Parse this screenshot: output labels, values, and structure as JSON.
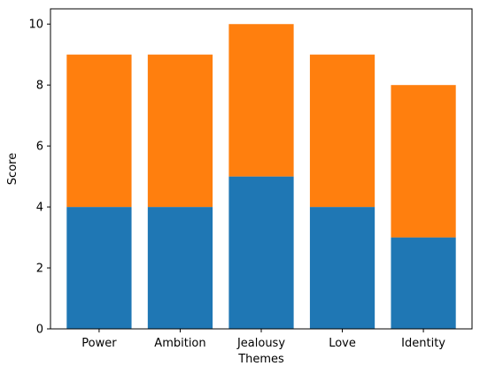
{
  "chart_data": {
    "type": "bar",
    "stacked": true,
    "categories": [
      "Power",
      "Ambition",
      "Jealousy",
      "Love",
      "Identity"
    ],
    "series": [
      {
        "values": [
          4,
          4,
          5,
          4,
          3
        ],
        "color": "#1f77b4"
      },
      {
        "values": [
          5,
          5,
          5,
          5,
          5
        ],
        "color": "#ff7f0e"
      }
    ],
    "xlabel": "Themes",
    "ylabel": "Score",
    "ylim": [
      0,
      10.5
    ],
    "yticks": [
      0,
      2,
      4,
      6,
      8,
      10
    ],
    "grid": false
  }
}
